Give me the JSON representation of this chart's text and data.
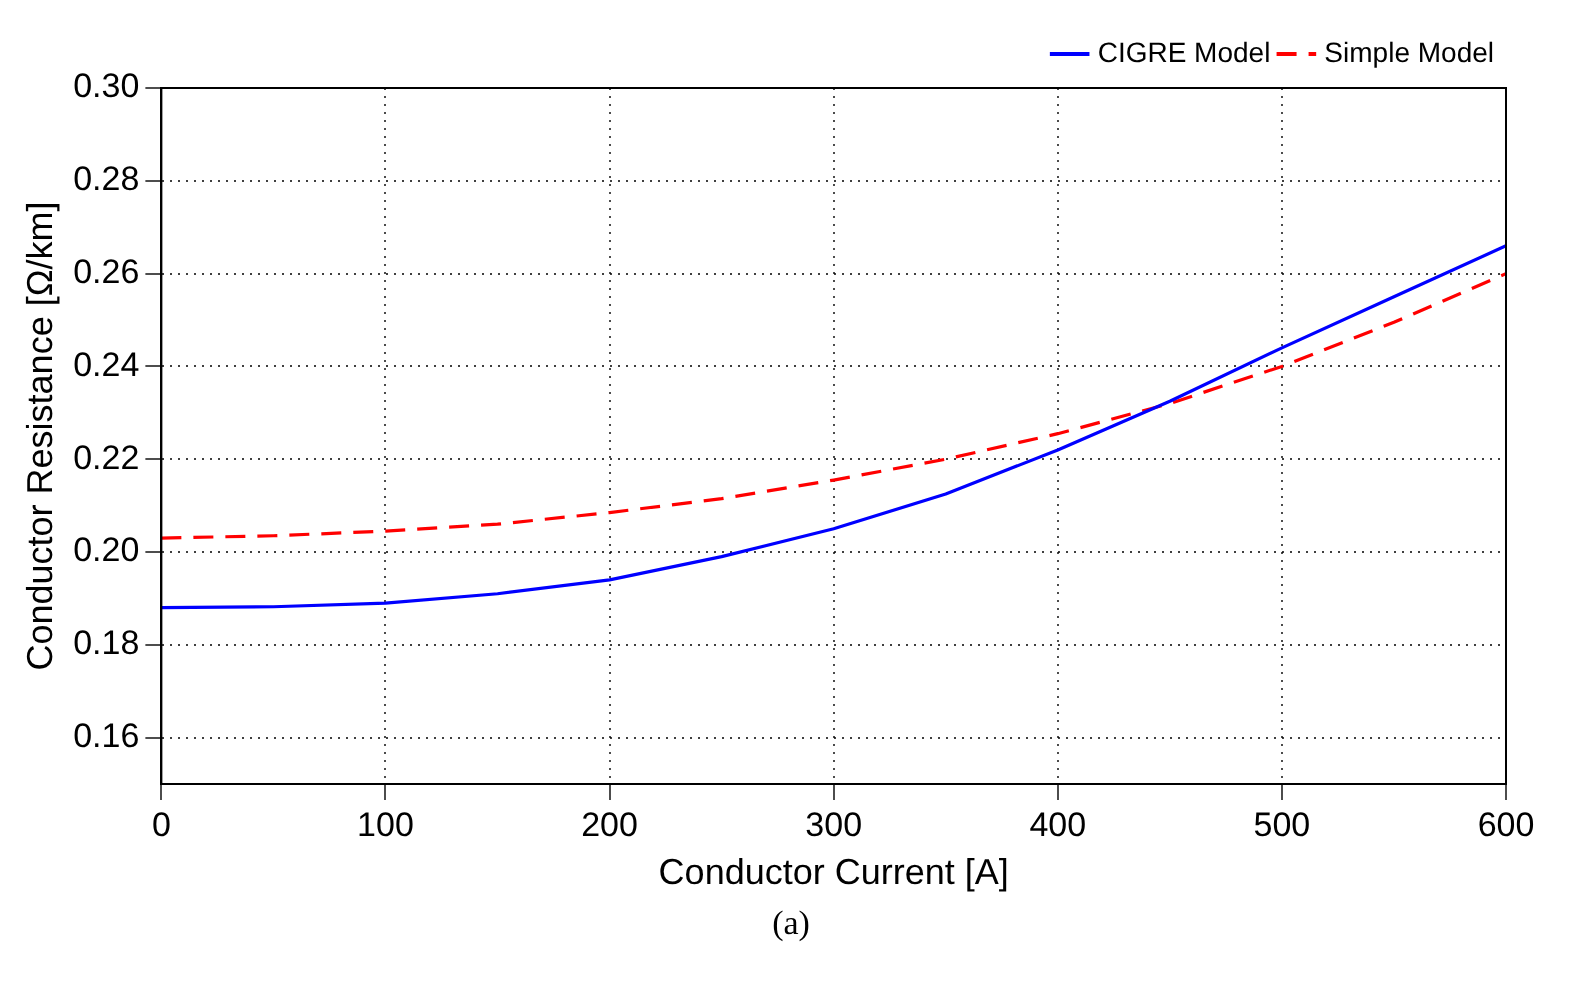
{
  "chart_data": {
    "type": "line",
    "xlabel": "Conductor Current [A]",
    "ylabel": "Conductor Resistance [Ω/km]",
    "x": [
      0,
      50,
      100,
      150,
      200,
      250,
      300,
      350,
      400,
      450,
      500,
      550,
      600
    ],
    "series": [
      {
        "name": "CIGRE Model",
        "color": "#0000ff",
        "line_style": "solid",
        "values": [
          0.188,
          0.1882,
          0.189,
          0.191,
          0.194,
          0.199,
          0.205,
          0.2125,
          0.222,
          0.2325,
          0.244,
          0.255,
          0.266
        ]
      },
      {
        "name": "Simple Model",
        "color": "#ff0000",
        "line_style": "dashed",
        "values": [
          0.203,
          0.2035,
          0.2045,
          0.206,
          0.2085,
          0.2115,
          0.2155,
          0.22,
          0.2255,
          0.232,
          0.24,
          0.2495,
          0.26
        ]
      }
    ],
    "xlim": [
      0,
      600
    ],
    "xticks": [
      0,
      100,
      200,
      300,
      400,
      500,
      600
    ],
    "ylim": [
      0.15,
      0.3
    ],
    "yticks": [
      {
        "value": 0.16,
        "label": "0.16"
      },
      {
        "value": 0.18,
        "label": "0.18"
      },
      {
        "value": 0.2,
        "label": "0.20"
      },
      {
        "value": 0.22,
        "label": "0.22"
      },
      {
        "value": 0.24,
        "label": "0.24"
      },
      {
        "value": 0.26,
        "label": "0.26"
      },
      {
        "value": 0.28,
        "label": "0.28"
      },
      {
        "value": 0.3,
        "label": "0.30"
      }
    ],
    "grid": true,
    "legend": "top right",
    "marker": "none",
    "annotations": [
      "(a)"
    ]
  }
}
